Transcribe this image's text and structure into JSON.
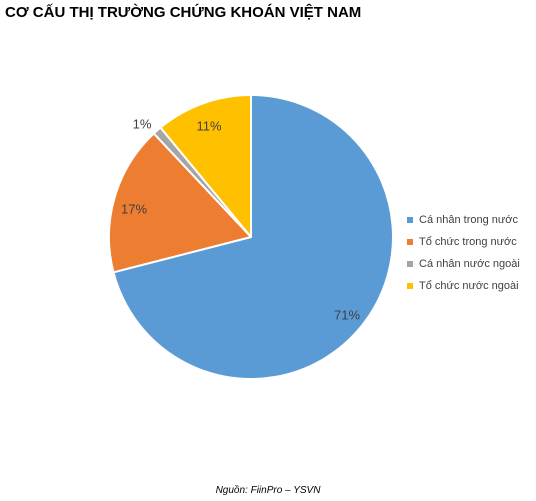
{
  "chart_data": {
    "type": "pie",
    "title": "CƠ CẤU THỊ TRƯỜNG CHỨNG KHOÁN VIỆT NAM",
    "categories": [
      "Cá nhân trong nước",
      "Tổ chức trong nước",
      "Cá nhân nước ngoài",
      "Tổ chức nước ngoài"
    ],
    "values": [
      71,
      17,
      1,
      11
    ],
    "labels": [
      "71%",
      "17%",
      "1%",
      "11%"
    ],
    "colors": [
      "#5B9BD5",
      "#ED7D31",
      "#A5A5A5",
      "#FFC000"
    ],
    "legend_position": "right",
    "start": "top",
    "direction": "clockwise"
  },
  "source": "Nguồn: FiinPro – YSVN"
}
